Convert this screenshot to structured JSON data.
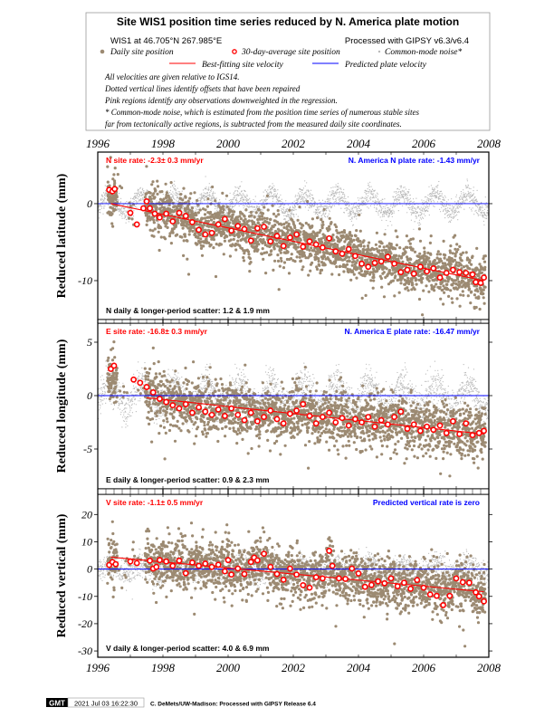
{
  "legend": {
    "title": "Site WIS1 position time series reduced by N. America plate motion",
    "location": "WIS1 at 46.705°N 267.985°E",
    "processed": "Processed with GIPSY v6.3/v6.4",
    "daily": "Daily site position",
    "avg30": "30-day-average site position",
    "cmn": "Common-mode noise*",
    "best_fit": "Best-fitting site velocity",
    "predicted": "Predicted plate velocity",
    "notes": [
      "All velocities are given relative to IGS14.",
      "Dotted vertical lines identify offsets that have been repaired",
      "Pink regions identify any observations downweighted in the regression.",
      "* Common-mode noise, which is estimated from the position time series of numerous stable sites",
      "far from tectonically active regions, is subtracted from the measured daily site coordinates."
    ]
  },
  "colors": {
    "daily": "#9c8a72",
    "cmn": "#b8b8b8",
    "fit": "#ff0000",
    "plate": "#0000ff",
    "avg": "#ff0000"
  },
  "footer": {
    "logo": "GMT",
    "timestamp": "2021 Jul 03 16:22:30",
    "credit": "C. DeMets/UW-Madison: Processed with GIPSY Release 6.4"
  },
  "chart_data": [
    {
      "type": "scatter",
      "id": "north",
      "ylabel": "Reduced latitude (mm)",
      "xlim": [
        1996,
        2008
      ],
      "xticks": [
        "1996",
        "1998",
        "2000",
        "2002",
        "2004",
        "2006",
        "2008"
      ],
      "ylim": [
        -15.06,
        6.7
      ],
      "yticks": [
        "0",
        "-10"
      ],
      "ytick_values": [
        0,
        -10
      ],
      "site_rate": "N site rate:  -2.3± 0.3 mm/yr",
      "plate_rate": "N. America N plate rate: -1.43 mm/yr",
      "scatter": "N daily & longer-period scatter:   1.2 &   1.9 mm",
      "fit": {
        "x": [
          1996.4,
          2007.85
        ],
        "y": [
          0.0,
          -10.0
        ]
      },
      "plate_line": 0,
      "noise": {
        "daily": 1.5,
        "seasonal": 0.8,
        "cmn_amp": 1.6,
        "cmn_noise": 0.7
      },
      "avg30": [
        [
          1996.35,
          1.8
        ],
        [
          1996.45,
          1.6
        ],
        [
          1996.52,
          1.9
        ],
        [
          1997.0,
          -1.2
        ],
        [
          1997.2,
          -2.7
        ],
        [
          1997.4,
          -0.6
        ],
        [
          1997.5,
          0.3
        ],
        [
          1997.6,
          -0.6
        ],
        [
          1997.75,
          -1.3
        ],
        [
          1997.9,
          -1.8
        ],
        [
          1998.1,
          -1.3
        ],
        [
          1998.3,
          -2.3
        ],
        [
          1998.5,
          -1.2
        ],
        [
          1998.7,
          -1.6
        ],
        [
          1998.9,
          -2.4
        ],
        [
          1999.1,
          -3.4
        ],
        [
          1999.3,
          -4.0
        ],
        [
          1999.5,
          -3.8
        ],
        [
          1999.7,
          -2.7
        ],
        [
          1999.9,
          -2.0
        ],
        [
          2000.1,
          -3.5
        ],
        [
          2000.3,
          -2.9
        ],
        [
          2000.5,
          -3.3
        ],
        [
          2000.7,
          -4.8
        ],
        [
          2000.9,
          -3.2
        ],
        [
          2001.1,
          -3.0
        ],
        [
          2001.3,
          -4.9
        ],
        [
          2001.5,
          -4.2
        ],
        [
          2001.7,
          -5.5
        ],
        [
          2001.9,
          -4.4
        ],
        [
          2002.1,
          -4.0
        ],
        [
          2002.3,
          -5.6
        ],
        [
          2002.5,
          -4.9
        ],
        [
          2002.7,
          -5.3
        ],
        [
          2002.9,
          -5.7
        ],
        [
          2003.1,
          -4.5
        ],
        [
          2003.3,
          -6.2
        ],
        [
          2003.5,
          -6.5
        ],
        [
          2003.7,
          -5.9
        ],
        [
          2003.9,
          -6.8
        ],
        [
          2004.1,
          -7.8
        ],
        [
          2004.3,
          -8.2
        ],
        [
          2004.5,
          -7.7
        ],
        [
          2004.7,
          -7.5
        ],
        [
          2004.9,
          -6.9
        ],
        [
          2005.1,
          -7.8
        ],
        [
          2005.3,
          -8.9
        ],
        [
          2005.5,
          -8.6
        ],
        [
          2005.7,
          -9.1
        ],
        [
          2005.9,
          -8.2
        ],
        [
          2006.1,
          -8.8
        ],
        [
          2006.3,
          -8.4
        ],
        [
          2006.5,
          -9.6
        ],
        [
          2006.7,
          -9.0
        ],
        [
          2006.9,
          -8.6
        ],
        [
          2007.1,
          -8.9
        ],
        [
          2007.3,
          -9.0
        ],
        [
          2007.5,
          -9.2
        ],
        [
          2007.6,
          -10.2
        ],
        [
          2007.75,
          -10.3
        ],
        [
          2007.85,
          -9.6
        ]
      ]
    },
    {
      "type": "scatter",
      "id": "east",
      "ylabel": "Reduced longitude (mm)",
      "xlim": [
        1996,
        2008
      ],
      "ylim": [
        -8.73,
        6.78
      ],
      "yticks": [
        "5",
        "0",
        "-5"
      ],
      "ytick_values": [
        5,
        0,
        -5
      ],
      "site_rate": "E site rate:  -16.8± 0.3 mm/yr",
      "plate_rate": "N. America E plate rate: -16.47 mm/yr",
      "scatter": "E daily & longer-period scatter:   0.9 &   2.3 mm",
      "fit": {
        "x": [
          1997.5,
          2007.85
        ],
        "y": [
          -0.2,
          -3.6
        ]
      },
      "plate_line": 0,
      "noise": {
        "daily": 1.2,
        "seasonal": 0.7,
        "cmn_amp": 1.5,
        "cmn_noise": 0.8
      },
      "avg30": [
        [
          1996.4,
          2.5
        ],
        [
          1996.5,
          2.8
        ],
        [
          1997.1,
          1.5
        ],
        [
          1997.3,
          1.2
        ],
        [
          1997.5,
          0.8
        ],
        [
          1997.7,
          0.3
        ],
        [
          1997.9,
          -0.3
        ],
        [
          1998.1,
          -0.6
        ],
        [
          1998.3,
          -0.9
        ],
        [
          1998.5,
          -1.2
        ],
        [
          1998.7,
          -0.8
        ],
        [
          1998.9,
          -1.6
        ],
        [
          1999.1,
          -1.1
        ],
        [
          1999.3,
          -1.5
        ],
        [
          1999.5,
          -1.8
        ],
        [
          1999.7,
          -1.3
        ],
        [
          1999.9,
          -1.9
        ],
        [
          2000.1,
          -1.2
        ],
        [
          2000.3,
          -1.8
        ],
        [
          2000.5,
          -2.3
        ],
        [
          2000.7,
          -1.6
        ],
        [
          2000.9,
          -2.4
        ],
        [
          2001.1,
          -2.0
        ],
        [
          2001.3,
          -1.4
        ],
        [
          2001.5,
          -2.2
        ],
        [
          2001.7,
          -2.6
        ],
        [
          2001.9,
          -1.7
        ],
        [
          2002.1,
          -1.4
        ],
        [
          2002.3,
          -0.8
        ],
        [
          2002.5,
          -1.9
        ],
        [
          2002.7,
          -2.6
        ],
        [
          2002.9,
          -2.0
        ],
        [
          2003.1,
          -1.6
        ],
        [
          2003.3,
          -2.5
        ],
        [
          2003.5,
          -2.1
        ],
        [
          2003.7,
          -2.8
        ],
        [
          2003.9,
          -2.2
        ],
        [
          2004.1,
          -2.5
        ],
        [
          2004.3,
          -2.0
        ],
        [
          2004.5,
          -2.9
        ],
        [
          2004.7,
          -2.3
        ],
        [
          2004.9,
          -2.7
        ],
        [
          2005.1,
          -2.0
        ],
        [
          2005.3,
          -1.5
        ],
        [
          2005.5,
          -3.1
        ],
        [
          2005.7,
          -2.7
        ],
        [
          2005.9,
          -3.3
        ],
        [
          2006.1,
          -2.9
        ],
        [
          2006.3,
          -3.2
        ],
        [
          2006.5,
          -2.8
        ],
        [
          2006.7,
          -3.5
        ],
        [
          2006.9,
          -2.4
        ],
        [
          2007.1,
          -3.6
        ],
        [
          2007.3,
          -2.6
        ],
        [
          2007.5,
          -3.7
        ],
        [
          2007.7,
          -3.5
        ],
        [
          2007.85,
          -3.3
        ]
      ]
    },
    {
      "type": "scatter",
      "id": "vertical",
      "ylabel": "Reduced vertical (mm)",
      "xlim": [
        1996,
        2008
      ],
      "ylim": [
        -32.3,
        27.4
      ],
      "yticks": [
        "20",
        "10",
        "0",
        "-10",
        "-20",
        "-30"
      ],
      "ytick_values": [
        20,
        10,
        0,
        -10,
        -20,
        -30
      ],
      "site_rate": "V site rate:  -1.1± 0.5 mm/yr",
      "plate_rate": "Predicted vertical rate is zero",
      "scatter": "V daily & longer-period scatter:   4.0 &   6.9 mm",
      "fit": {
        "x": [
          1996.4,
          2007.85
        ],
        "y": [
          4.4,
          -8.3
        ]
      },
      "plate_line": 0,
      "noise": {
        "daily": 4.5,
        "seasonal": 2.0,
        "cmn_amp": 2.5,
        "cmn_noise": 2.2
      },
      "avg30": [
        [
          1996.35,
          1.5
        ],
        [
          1996.45,
          2.6
        ],
        [
          1996.55,
          1.8
        ],
        [
          1997.0,
          2.8
        ],
        [
          1997.2,
          2.2
        ],
        [
          1997.6,
          3.1
        ],
        [
          1997.7,
          0.2
        ],
        [
          1997.8,
          0.8
        ],
        [
          1997.9,
          3.3
        ],
        [
          1998.1,
          2.8
        ],
        [
          1998.3,
          1.2
        ],
        [
          1998.5,
          3.1
        ],
        [
          1998.7,
          -1.5
        ],
        [
          1998.9,
          2.4
        ],
        [
          1999.1,
          1.2
        ],
        [
          1999.3,
          2.0
        ],
        [
          1999.5,
          0.8
        ],
        [
          1999.7,
          1.6
        ],
        [
          1999.9,
          -0.8
        ],
        [
          2000.0,
          3.3
        ],
        [
          2000.1,
          -2.0
        ],
        [
          2000.3,
          0.2
        ],
        [
          2000.5,
          -1.8
        ],
        [
          2000.7,
          2.6
        ],
        [
          2000.8,
          4.2
        ],
        [
          2000.9,
          3.2
        ],
        [
          2001.1,
          5.6
        ],
        [
          2001.3,
          0.8
        ],
        [
          2001.5,
          -1.8
        ],
        [
          2001.7,
          -3.9
        ],
        [
          2001.9,
          0.2
        ],
        [
          2002.1,
          -2.0
        ],
        [
          2002.3,
          -5.9
        ],
        [
          2002.5,
          -6.8
        ],
        [
          2002.7,
          -3.0
        ],
        [
          2002.9,
          -3.4
        ],
        [
          2003.1,
          6.7
        ],
        [
          2003.2,
          1.2
        ],
        [
          2003.4,
          -3.4
        ],
        [
          2003.6,
          -3.6
        ],
        [
          2003.8,
          0.2
        ],
        [
          2004.0,
          -1.6
        ],
        [
          2004.2,
          -6.5
        ],
        [
          2004.4,
          -5.8
        ],
        [
          2004.6,
          -4.5
        ],
        [
          2004.8,
          -5.2
        ],
        [
          2005.0,
          -3.4
        ],
        [
          2005.2,
          -6.3
        ],
        [
          2005.4,
          -5.0
        ],
        [
          2005.6,
          -7.2
        ],
        [
          2005.8,
          -4.0
        ],
        [
          2006.0,
          -6.8
        ],
        [
          2006.2,
          -9.3
        ],
        [
          2006.4,
          -9.8
        ],
        [
          2006.6,
          -13.2
        ],
        [
          2006.8,
          -9.8
        ],
        [
          2007.0,
          -3.4
        ],
        [
          2007.2,
          -4.8
        ],
        [
          2007.4,
          -5.0
        ],
        [
          2007.6,
          -8.5
        ],
        [
          2007.7,
          -10.0
        ],
        [
          2007.85,
          -11.8
        ]
      ]
    }
  ]
}
